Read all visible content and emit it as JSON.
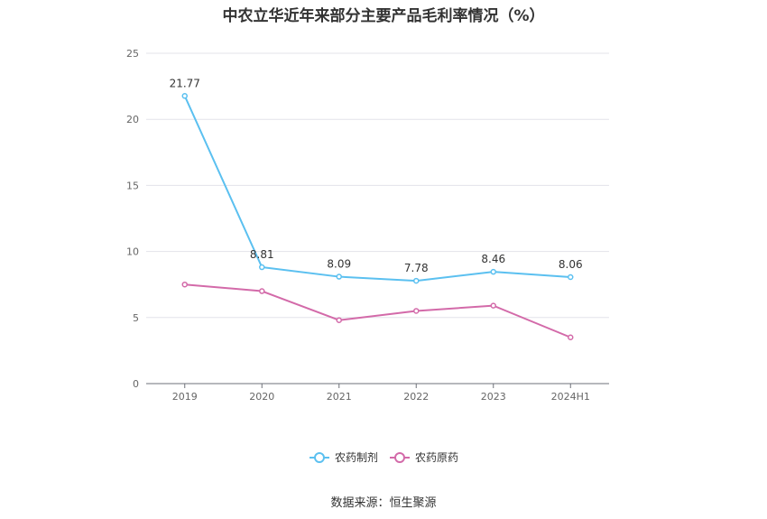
{
  "chart_data": {
    "type": "line",
    "title": "中农立华近年来部分主要产品毛利率情况（%）",
    "categories": [
      "2019",
      "2020",
      "2021",
      "2022",
      "2023",
      "2024H1"
    ],
    "series": [
      {
        "name": "农药制剂",
        "values": [
          21.77,
          8.81,
          8.09,
          7.78,
          8.46,
          8.06
        ],
        "color": "#5bc0f0",
        "show_labels": true
      },
      {
        "name": "农药原药",
        "values": [
          7.5,
          7.0,
          4.8,
          5.5,
          5.9,
          3.5
        ],
        "color": "#d36aa9",
        "show_labels": false
      }
    ],
    "yticks": [
      "0",
      "5",
      "10",
      "15",
      "20",
      "25"
    ],
    "ylim": [
      0,
      25
    ],
    "grid": true,
    "legend_position": "bottom-center"
  },
  "source": "数据来源：恒生聚源"
}
